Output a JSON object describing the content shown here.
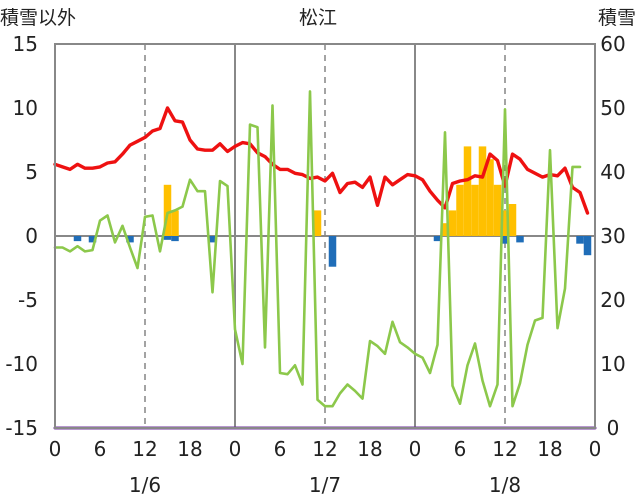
{
  "chart_data": {
    "type": "mixed",
    "title": "松江",
    "left_axis_label": "積雪以外",
    "right_axis_label": "積雪",
    "left_ylim": [
      -15,
      15
    ],
    "left_ticks": [
      "15",
      "10",
      "5",
      "0",
      "-5",
      "-10",
      "-15"
    ],
    "right_ylim": [
      0,
      60
    ],
    "right_ticks": [
      "60",
      "50",
      "40",
      "30",
      "20",
      "10",
      "0"
    ],
    "x_range_hours": [
      0,
      72
    ],
    "x_tick_labels": [
      "0",
      "6",
      "12",
      "18",
      "0",
      "6",
      "12",
      "18",
      "0",
      "6",
      "12",
      "18",
      "0"
    ],
    "date_labels": [
      "1/6",
      "1/7",
      "1/8"
    ],
    "grid": "vertical solid at day boundaries, dashed at noon",
    "series": [
      {
        "name": "red-line",
        "type": "line",
        "axis": "left",
        "color": "#ee1111",
        "x": [
          0,
          1,
          2,
          3,
          4,
          5,
          6,
          7,
          8,
          9,
          10,
          11,
          12,
          13,
          14,
          15,
          16,
          17,
          18,
          19,
          20,
          21,
          22,
          23,
          24,
          25,
          26,
          27,
          28,
          29,
          30,
          31,
          32,
          33,
          34,
          35,
          36,
          37,
          38,
          39,
          40,
          41,
          42,
          43,
          44,
          45,
          46,
          47,
          48,
          49,
          50,
          51,
          52,
          53,
          54,
          55,
          56,
          57,
          58,
          59,
          60,
          61,
          62,
          63,
          64,
          65,
          66,
          67,
          68,
          69,
          70,
          71,
          72
        ],
        "values": [
          5.6,
          5.4,
          5.2,
          5.6,
          5.3,
          5.3,
          5.4,
          5.7,
          5.8,
          6.4,
          7.1,
          7.4,
          7.7,
          8.2,
          8.4,
          10.0,
          9.0,
          8.9,
          7.5,
          6.8,
          6.7,
          6.7,
          7.2,
          6.6,
          7.0,
          7.3,
          7.2,
          6.5,
          6.2,
          5.6,
          5.2,
          5.2,
          4.9,
          4.8,
          4.5,
          4.6,
          4.3,
          4.9,
          3.4,
          4.1,
          4.2,
          3.8,
          4.6,
          2.4,
          4.6,
          4.0,
          4.4,
          4.8,
          4.7,
          4.4,
          3.5,
          2.8,
          2.2,
          4.1,
          4.3,
          4.4,
          4.7,
          4.6,
          6.4,
          5.9,
          3.9,
          6.4,
          6.0,
          5.2,
          4.9,
          4.6,
          4.8,
          4.7,
          5.3,
          3.8,
          3.4,
          1.8,
          null
        ]
      },
      {
        "name": "green-line",
        "type": "line",
        "axis": "left",
        "color": "#8cc84b",
        "x": [
          0,
          1,
          2,
          3,
          4,
          5,
          6,
          7,
          8,
          9,
          10,
          11,
          12,
          13,
          14,
          15,
          16,
          17,
          18,
          19,
          20,
          21,
          22,
          23,
          24,
          25,
          26,
          27,
          28,
          29,
          30,
          31,
          32,
          33,
          34,
          35,
          36,
          37,
          38,
          39,
          40,
          41,
          42,
          43,
          44,
          45,
          46,
          47,
          48,
          49,
          50,
          51,
          52,
          53,
          54,
          55,
          56,
          57,
          58,
          59,
          60,
          61,
          62,
          63,
          64,
          65,
          66,
          67,
          68,
          69,
          70,
          71,
          72
        ],
        "values": [
          -0.9,
          -0.9,
          -1.2,
          -0.8,
          -1.2,
          -1.1,
          1.2,
          1.6,
          -0.5,
          0.8,
          -0.9,
          -2.5,
          1.5,
          1.6,
          -1.2,
          1.8,
          2.0,
          2.3,
          4.4,
          3.5,
          3.5,
          -4.4,
          4.3,
          3.9,
          -7.3,
          -10.0,
          8.7,
          8.5,
          -8.7,
          10.2,
          -10.7,
          -10.8,
          -10.1,
          -11.6,
          11.3,
          -12.8,
          -13.3,
          -13.3,
          -12.3,
          -11.6,
          -12.1,
          -12.7,
          -8.2,
          -8.6,
          -9.2,
          -6.7,
          -8.3,
          -8.7,
          -9.2,
          -9.5,
          -10.7,
          -8.5,
          8.1,
          -11.7,
          -13.1,
          -10.1,
          -8.4,
          -11.3,
          -13.3,
          -11.6,
          9.9,
          -13.3,
          -11.5,
          -8.5,
          -6.6,
          -6.4,
          6.7,
          -7.2,
          -4.1,
          5.4,
          5.4,
          null,
          null
        ]
      },
      {
        "name": "blue-bars",
        "type": "bar",
        "axis": "left",
        "color": "#1f6db8",
        "x": [
          3,
          5,
          10,
          15,
          16,
          21,
          37,
          51,
          60,
          62,
          70,
          71
        ],
        "values": [
          -0.4,
          -0.5,
          -0.5,
          -0.3,
          -0.4,
          -0.5,
          -2.4,
          -0.4,
          -0.6,
          -0.5,
          -0.6,
          -1.5
        ]
      },
      {
        "name": "orange-bars",
        "type": "bar",
        "axis": "right",
        "color": "#ffc000",
        "x": [
          15,
          16,
          35,
          52,
          53,
          54,
          55,
          56,
          57,
          58,
          59,
          60,
          61
        ],
        "values": [
          38,
          34,
          34,
          32,
          34,
          38,
          44,
          38,
          44,
          42,
          38,
          34,
          35
        ]
      },
      {
        "name": "purple-line",
        "type": "line",
        "axis": "right",
        "color": "#7030a0",
        "x": [
          0,
          72
        ],
        "values": [
          0,
          0
        ]
      }
    ]
  }
}
